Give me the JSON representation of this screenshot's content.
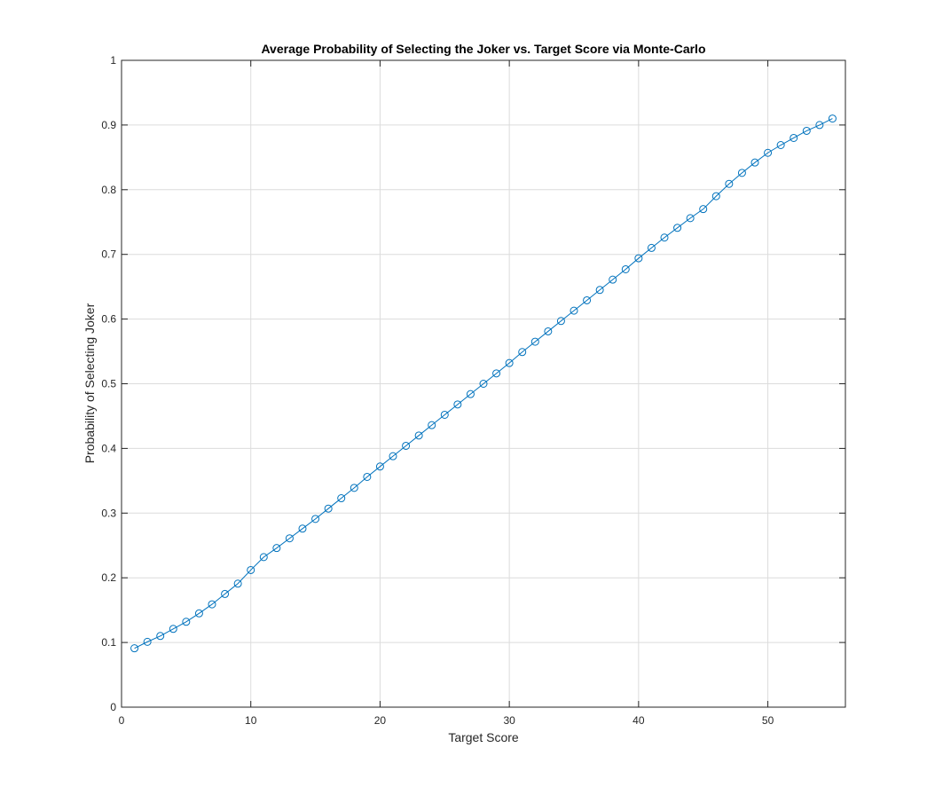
{
  "chart_data": {
    "type": "line",
    "title": "Average Probability of Selecting the Joker vs. Target Score via Monte-Carlo",
    "xlabel": "Target Score",
    "ylabel": "Probability of Selecting Joker",
    "xlim": [
      0,
      56
    ],
    "ylim": [
      0,
      1
    ],
    "xticks": [
      "0",
      "10",
      "20",
      "30",
      "40",
      "50"
    ],
    "yticks": [
      "0",
      "0.1",
      "0.2",
      "0.3",
      "0.4",
      "0.5",
      "0.6",
      "0.7",
      "0.8",
      "0.9",
      "1"
    ],
    "grid": true,
    "marker": "circle",
    "series": [
      {
        "color": "#0072BD",
        "x": [
          1,
          2,
          3,
          4,
          5,
          6,
          7,
          8,
          9,
          10,
          11,
          12,
          13,
          14,
          15,
          16,
          17,
          18,
          19,
          20,
          21,
          22,
          23,
          24,
          25,
          26,
          27,
          28,
          29,
          30,
          31,
          32,
          33,
          34,
          35,
          36,
          37,
          38,
          39,
          40,
          41,
          42,
          43,
          44,
          45,
          46,
          47,
          48,
          49,
          50,
          51,
          52,
          53,
          54,
          55
        ],
        "y": [
          0.091,
          0.101,
          0.11,
          0.121,
          0.132,
          0.145,
          0.159,
          0.175,
          0.191,
          0.212,
          0.232,
          0.246,
          0.261,
          0.276,
          0.291,
          0.307,
          0.323,
          0.339,
          0.356,
          0.372,
          0.388,
          0.404,
          0.42,
          0.436,
          0.452,
          0.468,
          0.484,
          0.5,
          0.516,
          0.532,
          0.549,
          0.565,
          0.581,
          0.597,
          0.613,
          0.629,
          0.645,
          0.661,
          0.677,
          0.694,
          0.71,
          0.726,
          0.741,
          0.756,
          0.77,
          0.79,
          0.809,
          0.826,
          0.842,
          0.857,
          0.869,
          0.88,
          0.891,
          0.9,
          0.91
        ]
      }
    ]
  }
}
